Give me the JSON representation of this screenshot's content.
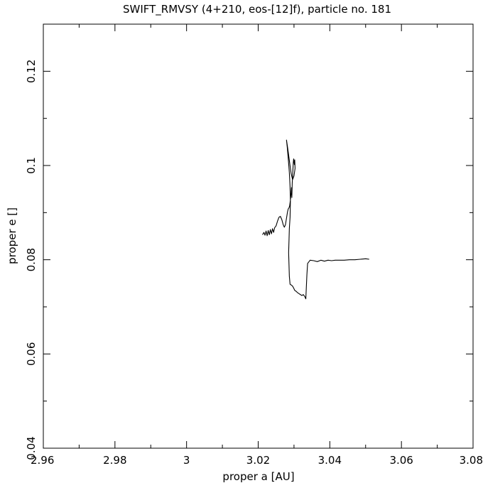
{
  "chart_data": {
    "type": "line",
    "title": "SWIFT_RMVSY (4+210, eos-[12]f), particle no. 181",
    "xlabel": "proper a [AU]",
    "ylabel": "proper e []",
    "xlim": [
      2.96,
      3.08
    ],
    "ylim": [
      0.04,
      0.13
    ],
    "x_ticks": [
      2.96,
      2.98,
      3.0,
      3.02,
      3.04,
      3.06,
      3.08
    ],
    "x_tick_labels": [
      "2.96",
      "2.98",
      "3",
      "3.02",
      "3.04",
      "3.06",
      "3.08"
    ],
    "y_ticks": [
      0.04,
      0.06,
      0.08,
      0.1,
      0.12
    ],
    "y_tick_labels": [
      "0.04",
      "0.06",
      "0.08",
      "0.1",
      "0.12"
    ],
    "x_minor_step": 0.01,
    "y_minor_step": 0.01,
    "grid": false,
    "legend": "none",
    "series": [
      {
        "color": "#000000",
        "points": [
          [
            3.0212,
            0.0853
          ],
          [
            3.0216,
            0.0858
          ],
          [
            3.0219,
            0.0852
          ],
          [
            3.0222,
            0.0861
          ],
          [
            3.0225,
            0.0851
          ],
          [
            3.0228,
            0.0862
          ],
          [
            3.0231,
            0.0853
          ],
          [
            3.0234,
            0.0864
          ],
          [
            3.0237,
            0.0855
          ],
          [
            3.024,
            0.0866
          ],
          [
            3.0243,
            0.0858
          ],
          [
            3.0246,
            0.0868
          ],
          [
            3.025,
            0.0872
          ],
          [
            3.0254,
            0.0882
          ],
          [
            3.0258,
            0.089
          ],
          [
            3.0262,
            0.0892
          ],
          [
            3.0266,
            0.0885
          ],
          [
            3.027,
            0.0874
          ],
          [
            3.0273,
            0.0869
          ],
          [
            3.0276,
            0.0874
          ],
          [
            3.0279,
            0.0888
          ],
          [
            3.0282,
            0.0902
          ],
          [
            3.0284,
            0.0908
          ],
          [
            3.0286,
            0.091
          ],
          [
            3.0288,
            0.0915
          ],
          [
            3.029,
            0.0927
          ],
          [
            3.0292,
            0.0942
          ],
          [
            3.0293,
            0.0953
          ],
          [
            3.0294,
            0.0932
          ],
          [
            3.0295,
            0.0962
          ],
          [
            3.0296,
            0.0976
          ],
          [
            3.0297,
            0.0992
          ],
          [
            3.0298,
            0.1006
          ],
          [
            3.0299,
            0.1014
          ],
          [
            3.03,
            0.1008
          ],
          [
            3.0301,
            0.1002
          ],
          [
            3.0302,
            0.1012
          ],
          [
            3.0303,
            0.0994
          ],
          [
            3.03,
            0.0978
          ],
          [
            3.0296,
            0.097
          ],
          [
            3.0292,
            0.0983
          ],
          [
            3.0288,
            0.1005
          ],
          [
            3.0284,
            0.1028
          ],
          [
            3.0281,
            0.1044
          ],
          [
            3.0279,
            0.1054
          ],
          [
            3.0281,
            0.104
          ],
          [
            3.0284,
            0.1014
          ],
          [
            3.0287,
            0.0985
          ],
          [
            3.0289,
            0.0955
          ],
          [
            3.029,
            0.0925
          ],
          [
            3.0289,
            0.089
          ],
          [
            3.0287,
            0.0866
          ],
          [
            3.0286,
            0.084
          ],
          [
            3.0285,
            0.0815
          ],
          [
            3.0286,
            0.079
          ],
          [
            3.0287,
            0.0765
          ],
          [
            3.0289,
            0.0748
          ],
          [
            3.0293,
            0.0746
          ],
          [
            3.0296,
            0.0744
          ],
          [
            3.0299,
            0.074
          ],
          [
            3.0302,
            0.0735
          ],
          [
            3.0306,
            0.0733
          ],
          [
            3.031,
            0.073
          ],
          [
            3.0314,
            0.0728
          ],
          [
            3.0318,
            0.0726
          ],
          [
            3.0322,
            0.0724
          ],
          [
            3.0326,
            0.0726
          ],
          [
            3.033,
            0.0722
          ],
          [
            3.0333,
            0.0717
          ],
          [
            3.0336,
            0.0768
          ],
          [
            3.0338,
            0.0792
          ],
          [
            3.0345,
            0.0799
          ],
          [
            3.0355,
            0.0798
          ],
          [
            3.0365,
            0.0796
          ],
          [
            3.0375,
            0.0799
          ],
          [
            3.0385,
            0.0797
          ],
          [
            3.0395,
            0.0799
          ],
          [
            3.0405,
            0.0798
          ],
          [
            3.0415,
            0.0799
          ],
          [
            3.0425,
            0.0799
          ],
          [
            3.044,
            0.0799
          ],
          [
            3.0455,
            0.08
          ],
          [
            3.047,
            0.08
          ],
          [
            3.0485,
            0.0801
          ],
          [
            3.05,
            0.0802
          ],
          [
            3.051,
            0.0801
          ]
        ]
      }
    ]
  }
}
